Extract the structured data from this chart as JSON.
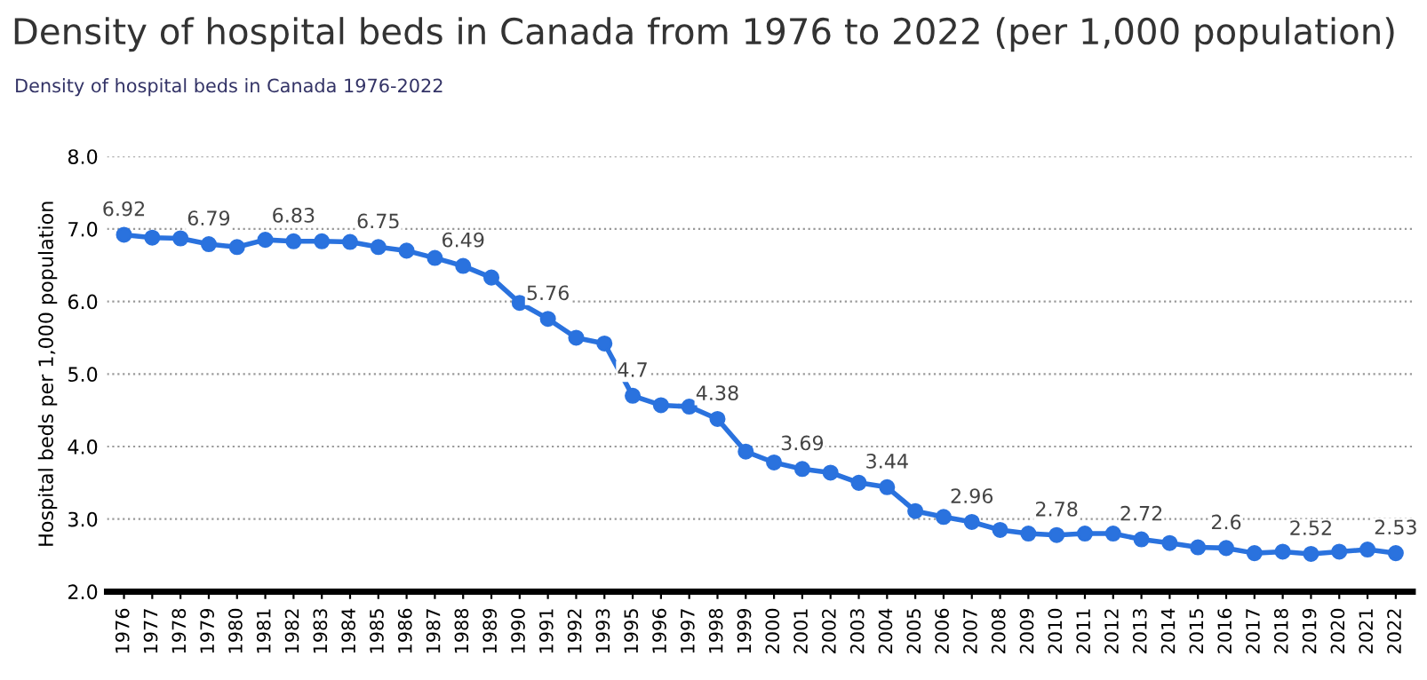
{
  "chart_data": {
    "type": "line",
    "title": "Density of hospital beds in Canada from 1976 to 2022 (per 1,000 population)",
    "subtitle": "Density of hospital beds in Canada 1976-2022",
    "ylabel": "Hospital beds per 1,000 population",
    "categories": [
      "1976",
      "1977",
      "1978",
      "1979",
      "1980",
      "1981",
      "1982",
      "1983",
      "1984",
      "1985",
      "1986",
      "1987",
      "1988",
      "1989",
      "1990",
      "1991",
      "1992",
      "1993",
      "1995",
      "1996",
      "1997",
      "1998",
      "1999",
      "2000",
      "2001",
      "2002",
      "2003",
      "2004",
      "2005",
      "2006",
      "2007",
      "2008",
      "2009",
      "2010",
      "2011",
      "2012",
      "2013",
      "2014",
      "2015",
      "2016",
      "2017",
      "2018",
      "2019",
      "2020",
      "2021",
      "2022"
    ],
    "series": [
      {
        "color": "#2a72de",
        "values": [
          6.92,
          6.88,
          6.87,
          6.79,
          6.75,
          6.85,
          6.83,
          6.83,
          6.82,
          6.75,
          6.7,
          6.6,
          6.49,
          6.33,
          5.98,
          5.76,
          5.5,
          5.42,
          4.7,
          4.57,
          4.55,
          4.38,
          3.93,
          3.78,
          3.69,
          3.64,
          3.5,
          3.44,
          3.11,
          3.03,
          2.96,
          2.85,
          2.8,
          2.78,
          2.8,
          2.8,
          2.72,
          2.67,
          2.61,
          2.6,
          2.53,
          2.55,
          2.52,
          2.55,
          2.58,
          2.53
        ],
        "value_labels": [
          "6.92",
          null,
          null,
          "6.79",
          null,
          null,
          "6.83",
          null,
          null,
          "6.75",
          null,
          null,
          "6.49",
          null,
          null,
          "5.76",
          null,
          null,
          "4.7",
          null,
          null,
          "4.38",
          null,
          null,
          "3.69",
          null,
          null,
          "3.44",
          null,
          null,
          "2.96",
          null,
          null,
          "2.78",
          null,
          null,
          "2.72",
          null,
          null,
          "2.6",
          null,
          null,
          "2.52",
          null,
          null,
          "2.53"
        ]
      }
    ],
    "ylim": [
      2.0,
      8.0
    ],
    "yticks": [
      {
        "value": 2,
        "label": "2.0"
      },
      {
        "value": 3,
        "label": "3.0"
      },
      {
        "value": 4,
        "label": "4.0"
      },
      {
        "value": 5,
        "label": "5.0"
      },
      {
        "value": 6,
        "label": "6.0"
      },
      {
        "value": 7,
        "label": "7.0"
      },
      {
        "value": 8,
        "label": "8.0"
      }
    ],
    "grid": "y",
    "marker": "circle",
    "line_style": "solid",
    "legend": false
  }
}
